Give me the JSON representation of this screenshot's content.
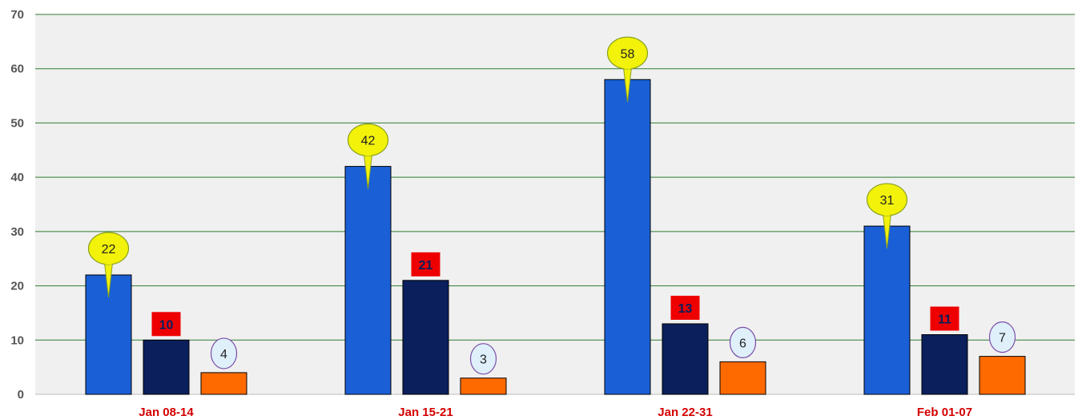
{
  "chart_data": {
    "type": "bar",
    "categories": [
      "Jan 08-14",
      "Jan 15-21",
      "Jan 22-31",
      "Feb 01-07"
    ],
    "series": [
      {
        "values": [
          22,
          42,
          58,
          31
        ],
        "color": "#1a5fd6",
        "label_style": "yellow-balloon"
      },
      {
        "values": [
          10,
          21,
          13,
          11
        ],
        "color": "#0a1f5c",
        "label_style": "red-box"
      },
      {
        "values": [
          4,
          3,
          6,
          7
        ],
        "color": "#ff6a00",
        "label_style": "light-blue-ellipse"
      }
    ],
    "ylim": [
      0,
      70
    ],
    "yticks": [
      0,
      10,
      20,
      30,
      40,
      50,
      60,
      70
    ],
    "grid": true,
    "grid_color": "#2e7d32",
    "plot_background": "#f0f0f0",
    "category_label_color": "#d40000"
  }
}
